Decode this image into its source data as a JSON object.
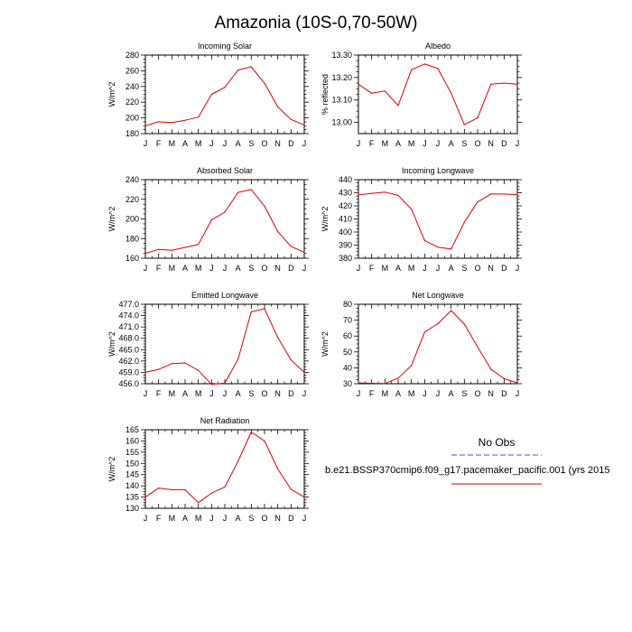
{
  "title": "Amazonia (10S-0,70-50W)",
  "legend": {
    "obs_label": "No Obs",
    "obs_color": "#7777dd",
    "run_label": "b.e21.BSSP370cmip6.f09_g17.pacemaker_pacific.001 (yrs 2015",
    "run_color": "#e00000"
  },
  "chart_data": [
    {
      "type": "line",
      "name": "incoming-solar",
      "title": "Incoming Solar",
      "ylabel": "W/m^2",
      "xlabel": "",
      "grid": false,
      "categories": [
        "J",
        "F",
        "M",
        "A",
        "M",
        "J",
        "J",
        "A",
        "S",
        "O",
        "N",
        "D",
        "J"
      ],
      "ylim": [
        180,
        280
      ],
      "yticks": [
        "180",
        "200",
        "220",
        "240",
        "260",
        "280"
      ],
      "ytick_values": [
        180,
        200,
        220,
        240,
        260,
        280
      ],
      "series": [
        {
          "name": "run",
          "values": [
            190,
            195,
            194,
            197,
            201,
            230,
            239,
            261,
            265,
            244,
            214,
            198,
            191
          ]
        }
      ]
    },
    {
      "type": "line",
      "name": "albedo",
      "title": "Albedo",
      "ylabel": "% reflected",
      "xlabel": "",
      "grid": false,
      "categories": [
        "J",
        "F",
        "M",
        "A",
        "M",
        "J",
        "J",
        "A",
        "S",
        "O",
        "N",
        "D",
        "J"
      ],
      "ylim": [
        12.95,
        13.3
      ],
      "yticks": [
        "13.00",
        "13.10",
        "13.20",
        "13.30"
      ],
      "ytick_values": [
        13.0,
        13.1,
        13.2,
        13.3
      ],
      "series": [
        {
          "name": "run",
          "values": [
            13.17,
            13.13,
            13.14,
            13.075,
            13.235,
            13.26,
            13.24,
            13.13,
            12.99,
            13.02,
            13.17,
            13.175,
            13.17
          ]
        }
      ]
    },
    {
      "type": "line",
      "name": "absorbed-solar",
      "title": "Absorbed Solar",
      "ylabel": "W/m^2",
      "xlabel": "",
      "grid": false,
      "categories": [
        "J",
        "F",
        "M",
        "A",
        "M",
        "J",
        "J",
        "A",
        "S",
        "O",
        "N",
        "D",
        "J"
      ],
      "ylim": [
        160,
        240
      ],
      "yticks": [
        "160",
        "180",
        "200",
        "220",
        "240"
      ],
      "ytick_values": [
        160,
        180,
        200,
        220,
        240
      ],
      "series": [
        {
          "name": "run",
          "values": [
            165,
            169,
            168,
            171,
            174,
            199,
            207,
            227,
            230,
            213,
            187,
            172,
            166
          ]
        }
      ]
    },
    {
      "type": "line",
      "name": "incoming-longwave",
      "title": "Incoming Longwave",
      "ylabel": "W/m^2",
      "xlabel": "",
      "grid": false,
      "categories": [
        "J",
        "F",
        "M",
        "A",
        "M",
        "J",
        "J",
        "A",
        "S",
        "O",
        "N",
        "D",
        "J"
      ],
      "ylim": [
        380,
        440
      ],
      "yticks": [
        "380",
        "390",
        "400",
        "410",
        "420",
        "430",
        "440"
      ],
      "ytick_values": [
        380,
        390,
        400,
        410,
        420,
        430,
        440
      ],
      "series": [
        {
          "name": "run",
          "values": [
            428.5,
            429.5,
            430.5,
            428,
            417.5,
            393.5,
            388.5,
            387,
            407.5,
            423,
            429,
            429,
            428.5
          ]
        }
      ]
    },
    {
      "type": "line",
      "name": "emitted-longwave",
      "title": "Emitted Longwave",
      "ylabel": "W/m^2",
      "xlabel": "",
      "grid": false,
      "categories": [
        "J",
        "F",
        "M",
        "A",
        "M",
        "J",
        "J",
        "A",
        "S",
        "O",
        "N",
        "D",
        "J"
      ],
      "ylim": [
        456,
        477
      ],
      "yticks": [
        "456.0",
        "459.0",
        "462.0",
        "465.0",
        "468.0",
        "471.0",
        "474.0",
        "477.0"
      ],
      "ytick_values": [
        456,
        459,
        462,
        465,
        468,
        471,
        474,
        477
      ],
      "series": [
        {
          "name": "run",
          "values": [
            459,
            459.8,
            461.3,
            461.5,
            459.5,
            455.8,
            456.2,
            462.5,
            475,
            475.8,
            468.2,
            462.3,
            459
          ]
        }
      ]
    },
    {
      "type": "line",
      "name": "net-longwave",
      "title": "Net Longwave",
      "ylabel": "W/m^2",
      "xlabel": "",
      "grid": false,
      "categories": [
        "J",
        "F",
        "M",
        "A",
        "M",
        "J",
        "J",
        "A",
        "S",
        "O",
        "N",
        "D",
        "J"
      ],
      "ylim": [
        30,
        80
      ],
      "yticks": [
        "30",
        "40",
        "50",
        "60",
        "70",
        "80"
      ],
      "ytick_values": [
        30,
        40,
        50,
        60,
        70,
        80
      ],
      "series": [
        {
          "name": "run",
          "values": [
            30.5,
            30.3,
            30.1,
            33.5,
            41.5,
            62.5,
            67.8,
            76,
            67.5,
            53.2,
            39.2,
            33.2,
            30.5
          ]
        }
      ]
    },
    {
      "type": "line",
      "name": "net-radiation",
      "title": "Net Radiation",
      "ylabel": "W/m^2",
      "xlabel": "",
      "grid": false,
      "categories": [
        "J",
        "F",
        "M",
        "A",
        "M",
        "J",
        "J",
        "A",
        "S",
        "O",
        "N",
        "D",
        "J"
      ],
      "ylim": [
        130,
        165
      ],
      "yticks": [
        "130",
        "135",
        "140",
        "145",
        "150",
        "155",
        "160",
        "165"
      ],
      "ytick_values": [
        130,
        135,
        140,
        145,
        150,
        155,
        160,
        165
      ],
      "series": [
        {
          "name": "run",
          "values": [
            135,
            139,
            138.3,
            138.3,
            132.5,
            136.8,
            139.5,
            151,
            164,
            160,
            147.5,
            138.5,
            135
          ]
        }
      ]
    }
  ]
}
